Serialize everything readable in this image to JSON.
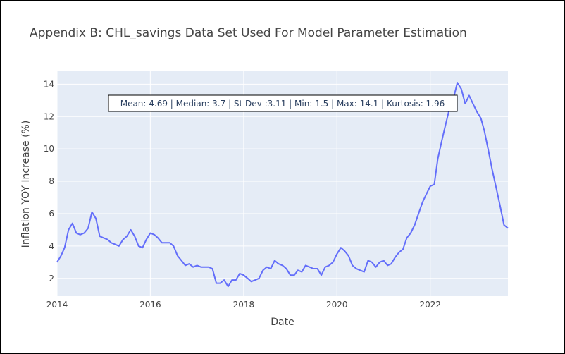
{
  "chart_data": {
    "type": "line",
    "title": "Appendix B: CHL_savings Data Set Used For Model Parameter Estimation",
    "xlabel": "Date",
    "ylabel": "Inflation YOY Increase (%)",
    "xlim": [
      "2014-01-01",
      "2023-09-01"
    ],
    "ylim": [
      0.9,
      14.8
    ],
    "x_ticks": [
      "2014",
      "2016",
      "2018",
      "2020",
      "2022"
    ],
    "y_ticks": [
      "2",
      "4",
      "6",
      "8",
      "10",
      "12",
      "14"
    ],
    "grid": true,
    "line_color": "#636efa",
    "plot_bg": "#e5ecf6",
    "annotation": "Mean: 4.69 | Median: 3.7 | St Dev :3.11 | Min: 1.5 | Max: 14.1 | Kurtosis: 1.96",
    "series": [
      {
        "x": [
          "2014-01",
          "2014-02",
          "2014-03",
          "2014-04",
          "2014-05",
          "2014-06",
          "2014-07",
          "2014-08",
          "2014-09",
          "2014-10",
          "2014-11",
          "2014-12",
          "2015-01",
          "2015-02",
          "2015-03",
          "2015-04",
          "2015-05",
          "2015-06",
          "2015-07",
          "2015-08",
          "2015-09",
          "2015-10",
          "2015-11",
          "2015-12",
          "2016-01",
          "2016-02",
          "2016-03",
          "2016-04",
          "2016-05",
          "2016-06",
          "2016-07",
          "2016-08",
          "2016-09",
          "2016-10",
          "2016-11",
          "2016-12",
          "2017-01",
          "2017-02",
          "2017-03",
          "2017-04",
          "2017-05",
          "2017-06",
          "2017-07",
          "2017-08",
          "2017-09",
          "2017-10",
          "2017-11",
          "2017-12",
          "2018-01",
          "2018-02",
          "2018-03",
          "2018-04",
          "2018-05",
          "2018-06",
          "2018-07",
          "2018-08",
          "2018-09",
          "2018-10",
          "2018-11",
          "2018-12",
          "2019-01",
          "2019-02",
          "2019-03",
          "2019-04",
          "2019-05",
          "2019-06",
          "2019-07",
          "2019-08",
          "2019-09",
          "2019-10",
          "2019-11",
          "2019-12",
          "2020-01",
          "2020-02",
          "2020-03",
          "2020-04",
          "2020-05",
          "2020-06",
          "2020-07",
          "2020-08",
          "2020-09",
          "2020-10",
          "2020-11",
          "2020-12",
          "2021-01",
          "2021-02",
          "2021-03",
          "2021-04",
          "2021-05",
          "2021-06",
          "2021-07",
          "2021-08",
          "2021-09",
          "2021-10",
          "2021-11",
          "2021-12",
          "2022-01",
          "2022-02",
          "2022-03",
          "2022-04",
          "2022-05",
          "2022-06",
          "2022-07",
          "2022-08",
          "2022-09",
          "2022-10",
          "2022-11",
          "2022-12",
          "2023-01",
          "2023-02",
          "2023-03",
          "2023-04",
          "2023-05",
          "2023-06",
          "2023-07",
          "2023-08",
          "2023-09"
        ],
        "y": [
          3.0,
          3.4,
          3.9,
          5.0,
          5.4,
          4.8,
          4.7,
          4.8,
          5.1,
          6.1,
          5.7,
          4.6,
          4.5,
          4.4,
          4.2,
          4.1,
          4.0,
          4.4,
          4.6,
          5.0,
          4.6,
          4.0,
          3.9,
          4.4,
          4.8,
          4.7,
          4.5,
          4.2,
          4.2,
          4.2,
          4.0,
          3.4,
          3.1,
          2.8,
          2.9,
          2.7,
          2.8,
          2.7,
          2.7,
          2.7,
          2.6,
          1.7,
          1.7,
          1.9,
          1.5,
          1.9,
          1.9,
          2.3,
          2.2,
          2.0,
          1.8,
          1.9,
          2.0,
          2.5,
          2.7,
          2.6,
          3.1,
          2.9,
          2.8,
          2.6,
          2.2,
          2.2,
          2.5,
          2.4,
          2.8,
          2.7,
          2.6,
          2.6,
          2.2,
          2.7,
          2.8,
          3.0,
          3.5,
          3.9,
          3.7,
          3.4,
          2.8,
          2.6,
          2.5,
          2.4,
          3.1,
          3.0,
          2.7,
          3.0,
          3.1,
          2.8,
          2.9,
          3.3,
          3.6,
          3.8,
          4.5,
          4.8,
          5.3,
          6.0,
          6.7,
          7.2,
          7.7,
          7.8,
          9.4,
          10.5,
          11.5,
          12.5,
          13.1,
          14.1,
          13.7,
          12.8,
          13.3,
          12.8,
          12.3,
          11.9,
          11.1,
          9.9,
          8.7,
          7.6,
          6.5,
          5.3,
          5.1
        ]
      }
    ]
  }
}
